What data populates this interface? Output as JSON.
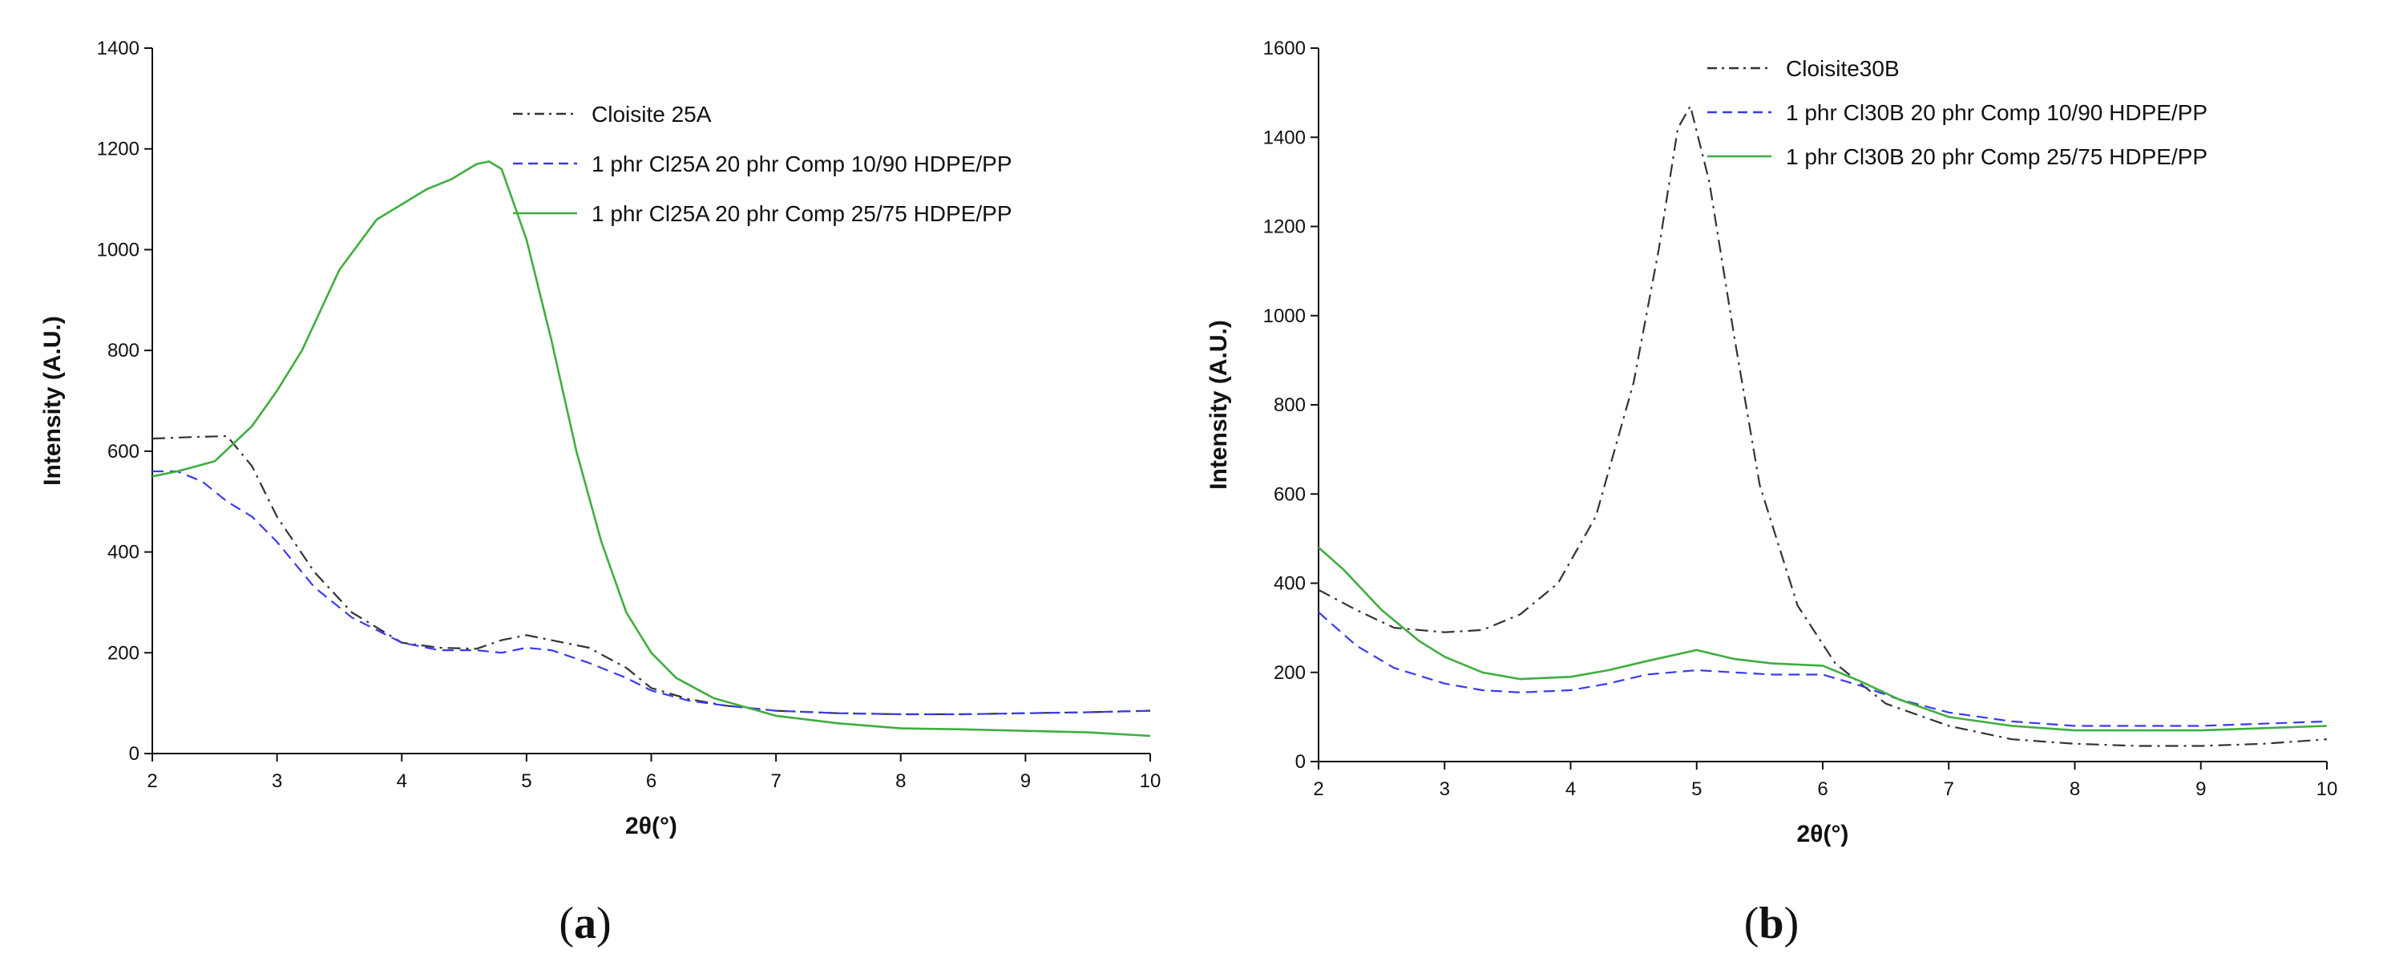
{
  "chart_data": [
    {
      "type": "line",
      "panel_label": "a",
      "xlabel": "2θ",
      "xlabel_unit": "(°)",
      "ylabel": "Intensity (A.U.)",
      "xlim": [
        2,
        10
      ],
      "ylim": [
        0,
        1400
      ],
      "xticks": [
        2,
        3,
        4,
        5,
        6,
        7,
        8,
        9,
        10
      ],
      "yticks": [
        0,
        200,
        400,
        600,
        800,
        1000,
        1200,
        1400
      ],
      "legend_position": "top-right",
      "series": [
        {
          "name": "Cloisite 25A",
          "color": "#333333",
          "style": "dashdot",
          "x": [
            2,
            2.3,
            2.6,
            2.8,
            3,
            3.3,
            3.6,
            4,
            4.3,
            4.6,
            4.8,
            5,
            5.2,
            5.5,
            5.8,
            6,
            6.3,
            6.6,
            7,
            7.5,
            8,
            8.5,
            9,
            9.5,
            10
          ],
          "y": [
            625,
            628,
            630,
            570,
            470,
            360,
            280,
            220,
            210,
            208,
            225,
            235,
            225,
            210,
            170,
            130,
            108,
            95,
            85,
            80,
            78,
            78,
            80,
            82,
            85
          ]
        },
        {
          "name": "1 phr Cl25A  20 phr Comp  10/90 HDPE/PP",
          "color": "#3a3af0",
          "style": "dashed",
          "x": [
            2,
            2.2,
            2.4,
            2.6,
            2.8,
            3,
            3.3,
            3.6,
            4,
            4.3,
            4.6,
            4.8,
            5,
            5.2,
            5.5,
            5.8,
            6,
            6.3,
            6.6,
            7,
            7.5,
            8,
            8.5,
            9,
            9.5,
            10
          ],
          "y": [
            560,
            560,
            540,
            500,
            470,
            420,
            330,
            270,
            220,
            205,
            205,
            200,
            210,
            205,
            180,
            150,
            125,
            105,
            95,
            85,
            80,
            78,
            78,
            80,
            82,
            85
          ]
        },
        {
          "name": "1 phr Cl25A  20 phr Comp  25/75 HDPE/PP",
          "color": "#3fae3f",
          "style": "solid",
          "x": [
            2,
            2.2,
            2.5,
            2.8,
            3,
            3.2,
            3.5,
            3.8,
            4,
            4.2,
            4.4,
            4.6,
            4.7,
            4.8,
            5,
            5.2,
            5.4,
            5.6,
            5.8,
            6,
            6.2,
            6.5,
            7,
            7.5,
            8,
            8.5,
            9,
            9.5,
            10
          ],
          "y": [
            550,
            560,
            580,
            650,
            720,
            800,
            960,
            1060,
            1090,
            1120,
            1140,
            1170,
            1175,
            1160,
            1020,
            820,
            600,
            420,
            280,
            200,
            150,
            110,
            75,
            60,
            50,
            48,
            45,
            42,
            35
          ]
        }
      ]
    },
    {
      "type": "line",
      "panel_label": "b",
      "xlabel": "2θ",
      "xlabel_unit": "(°)",
      "ylabel": "Intensity (A.U.)",
      "xlim": [
        2,
        10
      ],
      "ylim": [
        0,
        1600
      ],
      "xticks": [
        2,
        3,
        4,
        5,
        6,
        7,
        8,
        9,
        10
      ],
      "yticks": [
        0,
        200,
        400,
        600,
        800,
        1000,
        1200,
        1400,
        1600
      ],
      "legend_position": "top-right",
      "series": [
        {
          "name": "Cloisite30B",
          "color": "#333333",
          "style": "dashdot",
          "x": [
            2,
            2.3,
            2.6,
            3,
            3.3,
            3.6,
            3.9,
            4.2,
            4.5,
            4.7,
            4.85,
            4.95,
            5.1,
            5.3,
            5.5,
            5.8,
            6.1,
            6.5,
            7,
            7.5,
            8,
            8.5,
            9,
            9.5,
            10
          ],
          "y": [
            385,
            340,
            300,
            290,
            295,
            330,
            400,
            550,
            850,
            1150,
            1420,
            1470,
            1300,
            950,
            620,
            350,
            220,
            130,
            80,
            50,
            40,
            35,
            35,
            40,
            50
          ]
        },
        {
          "name": "1 phr Cl30B  20 phr Comp  10/90 HDPE/PP",
          "color": "#3a3af0",
          "style": "dashed",
          "x": [
            2,
            2.3,
            2.6,
            3,
            3.3,
            3.6,
            4,
            4.3,
            4.6,
            5,
            5.3,
            5.6,
            6,
            6.3,
            6.6,
            7,
            7.5,
            8,
            8.5,
            9,
            9.5,
            10
          ],
          "y": [
            335,
            260,
            210,
            175,
            160,
            155,
            160,
            175,
            195,
            205,
            200,
            195,
            195,
            170,
            140,
            110,
            90,
            80,
            80,
            80,
            85,
            90
          ]
        },
        {
          "name": "1 phr Cl30B  20 phr Comp  25/75 HDPE/PP",
          "color": "#3fae3f",
          "style": "solid",
          "x": [
            2,
            2.2,
            2.5,
            2.8,
            3,
            3.3,
            3.6,
            4,
            4.3,
            4.6,
            5,
            5.3,
            5.6,
            6,
            6.3,
            6.6,
            7,
            7.5,
            8,
            8.5,
            9,
            9.5,
            10
          ],
          "y": [
            480,
            430,
            340,
            270,
            235,
            200,
            185,
            190,
            205,
            225,
            250,
            230,
            220,
            215,
            180,
            140,
            100,
            80,
            70,
            70,
            70,
            75,
            80
          ]
        }
      ]
    }
  ]
}
